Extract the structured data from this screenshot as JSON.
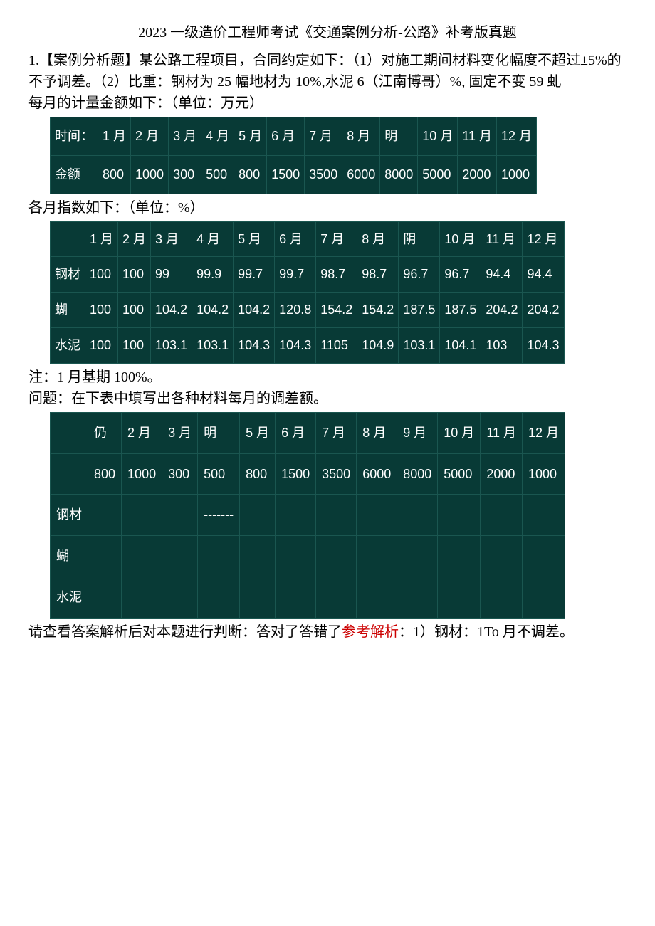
{
  "title": "2023 一级造价工程师考试《交通案例分析-公路》补考版真题",
  "para1": "1.【案例分析题】某公路工程项目，合同约定如下：（1）对施工期间材料变化幅度不超过±5%的不予调差。（2）比重：钢材为 25 幅地材为 10%,水泥 6（江南博哥）%, 固定不变 59 虬",
  "para2": "每月的计量金额如下：（单位：万元）",
  "table1": {
    "background_color": "#083a36",
    "text_color": "#ffffff",
    "border_color": "#1a5650",
    "headers": [
      "时间：",
      "1 月",
      "2 月",
      "3 月",
      "4 月",
      "5 月",
      "6 月",
      "7 月",
      "8 月",
      "明",
      "10 月",
      "11 月",
      "12 月"
    ],
    "row_label": "金额",
    "values": [
      "800",
      "1000",
      "300",
      "500",
      "800",
      "1500",
      "3500",
      "6000",
      "8000",
      "5000",
      "2000",
      "1000"
    ]
  },
  "para3": "各月指数如下：（单位：%）",
  "table2": {
    "background_color": "#083a36",
    "text_color": "#ffffff",
    "border_color": "#1a5650",
    "headers": [
      "",
      "1 月",
      "2 月",
      "3 月",
      "4 月",
      "5 月",
      "6 月",
      "7 月",
      "8 月",
      "阴",
      "10 月",
      "11 月",
      "12 月"
    ],
    "rows": [
      {
        "label": "钢材",
        "values": [
          "100",
          "100",
          "99",
          "99.9",
          "99.7",
          "99.7",
          "98.7",
          "98.7",
          "96.7",
          "96.7",
          "94.4",
          "94.4"
        ]
      },
      {
        "label": "蝴",
        "values": [
          "100",
          "100",
          "104.2",
          "104.2",
          "104.2",
          "120.8",
          "154.2",
          "154.2",
          "187.5",
          "187.5",
          "204.2",
          "204.2"
        ]
      },
      {
        "label": "水泥",
        "values": [
          "100",
          "100",
          "103.1",
          "103.1",
          "104.3",
          "104.3",
          "1105",
          "104.9",
          "103.1",
          "104.1",
          "103",
          "104.3"
        ]
      }
    ]
  },
  "para4": "注：1 月基期 100%。",
  "para5": "问题：在下表中填写出各种材料每月的调差额。",
  "table3": {
    "background_color": "#083a36",
    "text_color": "#ffffff",
    "border_color": "#1a5650",
    "headers": [
      "",
      "仍",
      "2 月",
      "3 月",
      "明",
      "5 月",
      "6 月",
      "7 月",
      "8 月",
      "9 月",
      "10 月",
      "11 月",
      "12 月"
    ],
    "values_row": [
      "",
      "800",
      "1000",
      "300",
      "500",
      "800",
      "1500",
      "3500",
      "6000",
      "8000",
      "5000",
      "2000",
      "1000"
    ],
    "rows": [
      {
        "label": "钢材",
        "values": [
          "",
          "",
          "",
          "-------",
          "",
          "",
          "",
          "",
          "",
          "",
          "",
          ""
        ]
      },
      {
        "label": "蝴",
        "values": [
          "",
          "",
          "",
          "",
          "",
          "",
          "",
          "",
          "",
          "",
          "",
          ""
        ]
      },
      {
        "label": "水泥",
        "values": [
          "",
          "",
          "",
          "",
          "",
          "",
          "",
          "",
          "",
          "",
          "",
          ""
        ]
      }
    ]
  },
  "para6_part1": "请查看答案解析后对本题进行判断：答对了答错了",
  "para6_red": "参考解析",
  "para6_part2": "：1）钢材：1To 月不调差。"
}
